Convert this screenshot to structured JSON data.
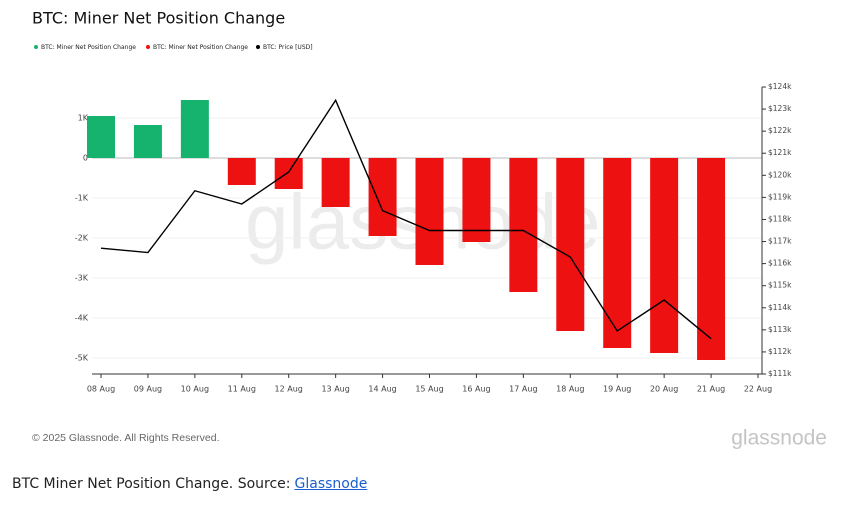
{
  "chart_data": {
    "type": "bar",
    "title": "BTC: Miner Net Position Change",
    "categories": [
      "08 Aug",
      "09 Aug",
      "10 Aug",
      "11 Aug",
      "12 Aug",
      "13 Aug",
      "14 Aug",
      "15 Aug",
      "16 Aug",
      "17 Aug",
      "18 Aug",
      "19 Aug",
      "20 Aug",
      "21 Aug",
      "22 Aug"
    ],
    "series": [
      {
        "name": "BTC: Miner Net Position Change",
        "color": "#16b36e",
        "values": [
          1050,
          825,
          1450,
          null,
          null,
          null,
          null,
          null,
          null,
          null,
          null,
          null,
          null,
          null,
          null
        ]
      },
      {
        "name": "BTC: Miner Net Position Change",
        "color": "#ee1111",
        "values": [
          null,
          null,
          null,
          -675,
          -775,
          -1225,
          -1950,
          -2675,
          -2100,
          -3350,
          -4325,
          -4750,
          -4875,
          -5050,
          null
        ]
      },
      {
        "name": "BTC: Price [USD]",
        "color": "#000000",
        "type": "line",
        "axis": "y2",
        "values": [
          116700,
          116500,
          119300,
          118700,
          120150,
          123400,
          118400,
          117500,
          117500,
          117500,
          116300,
          112950,
          114350,
          112600,
          null
        ]
      }
    ],
    "ylim": [
      -5400,
      1775
    ],
    "yticks": [
      {
        "value": 1000,
        "label": "1K"
      },
      0,
      {
        "value": -1000,
        "label": "-1K"
      },
      {
        "value": -2000,
        "label": "-2K"
      },
      {
        "value": -3000,
        "label": "-3K"
      },
      {
        "value": -4000,
        "label": "-4K"
      },
      {
        "value": -5000,
        "label": "-5K"
      }
    ],
    "y2lim": [
      111000,
      124000
    ],
    "y2ticks": [
      {
        "value": 111000,
        "label": "$111k"
      },
      {
        "value": 112000,
        "label": "$112k"
      },
      {
        "value": 113000,
        "label": "$113k"
      },
      {
        "value": 114000,
        "label": "$114k"
      },
      {
        "value": 115000,
        "label": "$115k"
      },
      {
        "value": 116000,
        "label": "$116k"
      },
      {
        "value": 117000,
        "label": "$117k"
      },
      {
        "value": 118000,
        "label": "$118k"
      },
      {
        "value": 119000,
        "label": "$119k"
      },
      {
        "value": 120000,
        "label": "$120k"
      },
      {
        "value": 121000,
        "label": "$121k"
      },
      {
        "value": 122000,
        "label": "$122k"
      },
      {
        "value": 123000,
        "label": "$123k"
      },
      {
        "value": 124000,
        "label": "$124k"
      }
    ],
    "grid": true
  },
  "watermark": "glassnode",
  "footer": {
    "copyright": "© 2025 Glassnode. All Rights Reserved.",
    "logo": "glassnode"
  },
  "caption": {
    "text": "BTC Miner Net Position Change. Source:",
    "link": "Glassnode"
  }
}
